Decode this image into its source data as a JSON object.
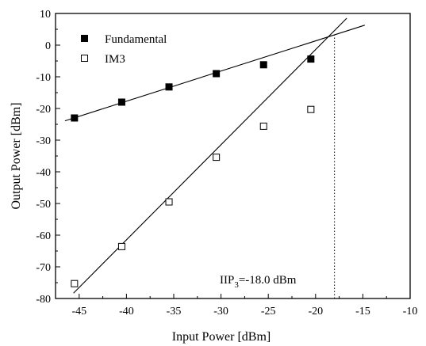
{
  "chart_data": {
    "type": "scatter",
    "xlabel": "Input Power [dBm]",
    "ylabel": "Output Power [dBm]",
    "xlim": [
      -47.5,
      -10
    ],
    "ylim": [
      -80,
      10
    ],
    "xticks": [
      -45,
      -40,
      -35,
      -30,
      -25,
      -20,
      -15,
      -10
    ],
    "yticks": [
      -80,
      -70,
      -60,
      -50,
      -40,
      -30,
      -20,
      -10,
      0,
      10
    ],
    "grid": false,
    "legend_position": "top-left",
    "series": [
      {
        "name": "Fundamental",
        "marker": "filled-square",
        "color": "#000000",
        "x": [
          -45.5,
          -40.5,
          -35.5,
          -30.5,
          -25.5,
          -20.5
        ],
        "y": [
          -23.0,
          -18.0,
          -13.2,
          -9.0,
          -6.2,
          -4.4
        ]
      },
      {
        "name": "IM3",
        "marker": "open-square",
        "color": "#000000",
        "x": [
          -45.5,
          -40.5,
          -35.5,
          -30.5,
          -25.5,
          -20.5
        ],
        "y": [
          -75.3,
          -63.6,
          -49.5,
          -35.4,
          -25.6,
          -20.3
        ]
      }
    ],
    "fit_lines": [
      {
        "series": "Fundamental",
        "x": [
          -46.5,
          -14.8
        ],
        "y": [
          -23.9,
          6.3
        ]
      },
      {
        "series": "IM3",
        "x": [
          -45.6,
          -16.7
        ],
        "y": [
          -78.3,
          8.5
        ]
      }
    ],
    "reference_line": {
      "style": "dotted",
      "x": -18.0,
      "y_from": -80,
      "y_to": 3.2
    },
    "annotation": {
      "prefix": "IIP",
      "subscript": "3",
      "suffix": "=-18.0 dBm"
    }
  }
}
